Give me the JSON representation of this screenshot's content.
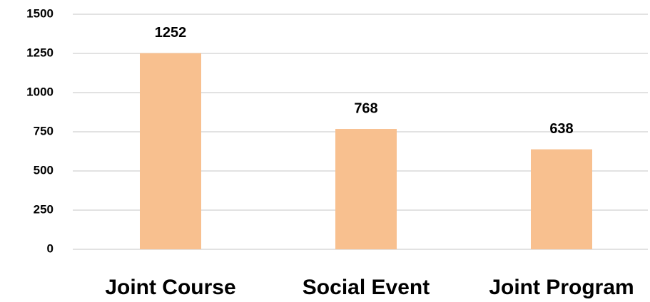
{
  "chart_data": {
    "type": "bar",
    "categories": [
      "Joint Course",
      "Social Event",
      "Joint Program"
    ],
    "values": [
      1252,
      768,
      638
    ],
    "color": "#f8c08f",
    "ylim": [
      0,
      1500
    ],
    "yticks": [
      0,
      250,
      500,
      750,
      1000,
      1250,
      1500
    ],
    "grid": true
  }
}
